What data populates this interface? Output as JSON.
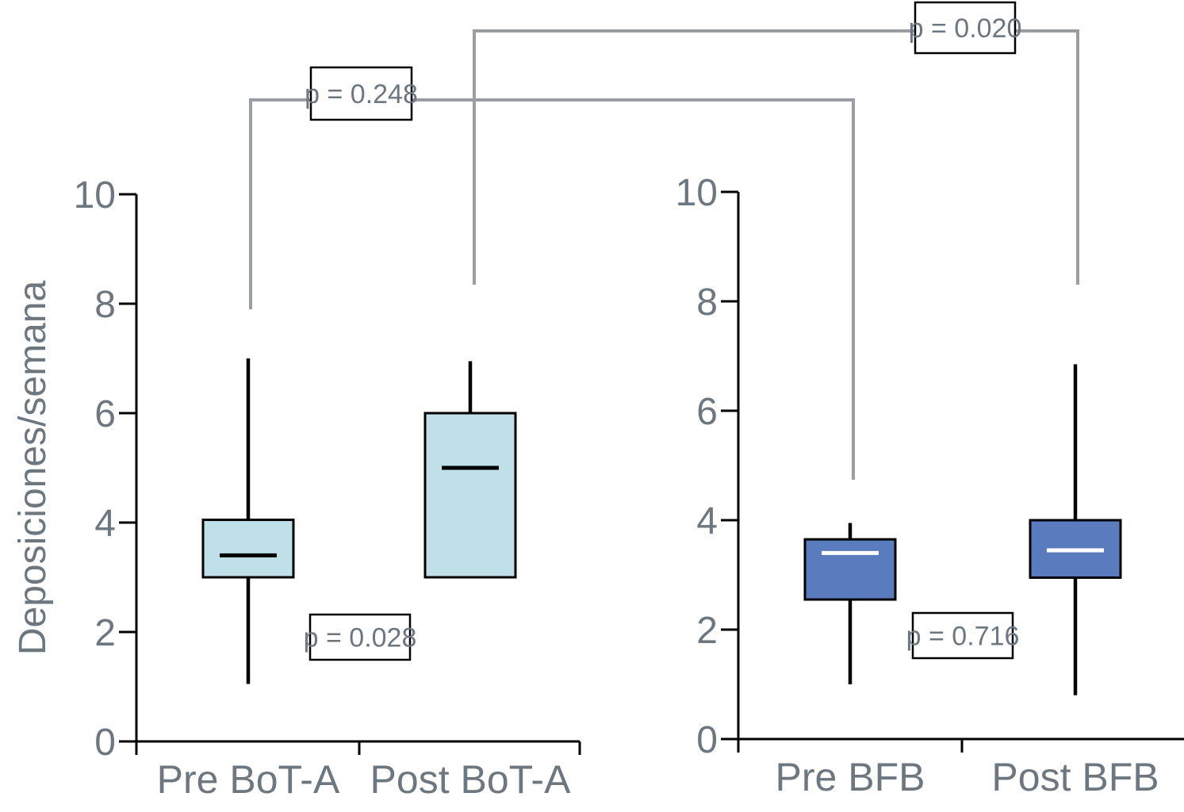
{
  "chart_data": {
    "type": "box",
    "ylabel": "Deposiciones/semana",
    "ylim": [
      0,
      10
    ],
    "yticks": [
      0,
      2,
      4,
      6,
      8,
      10
    ],
    "panels": [
      {
        "categories": [
          "Pre BoT-A",
          "Post BoT-A"
        ],
        "fill": "#bfe0e8",
        "median_color": "#000000",
        "boxes": [
          {
            "category": "Pre BoT-A",
            "whisker_low": 1.05,
            "q1": 3.0,
            "median": 3.4,
            "q3": 4.05,
            "whisker_high": 7.0
          },
          {
            "category": "Post BoT-A",
            "whisker_low": 3.0,
            "q1": 3.0,
            "median": 5.0,
            "q3": 6.0,
            "whisker_high": 6.95
          }
        ],
        "p_value": "p = 0.028"
      },
      {
        "categories": [
          "Pre BFB",
          "Post BFB"
        ],
        "fill": "#5a7bbd",
        "median_color": "#ffffff",
        "boxes": [
          {
            "category": "Pre BFB",
            "whisker_low": 1.0,
            "q1": 2.55,
            "median": 3.4,
            "q3": 3.65,
            "whisker_high": 3.95
          },
          {
            "category": "Post BFB",
            "whisker_low": 0.8,
            "q1": 2.95,
            "median": 3.45,
            "q3": 4.0,
            "whisker_high": 6.85
          }
        ],
        "p_value": "p = 0.716"
      }
    ],
    "comparisons": [
      {
        "label": "p = 0.248",
        "from": "Pre BoT-A",
        "to": "Pre BFB"
      },
      {
        "label": "p = 0.020",
        "from": "Post BoT-A",
        "to": "Post BFB"
      }
    ],
    "bracket_color": "#9a9ea3"
  }
}
